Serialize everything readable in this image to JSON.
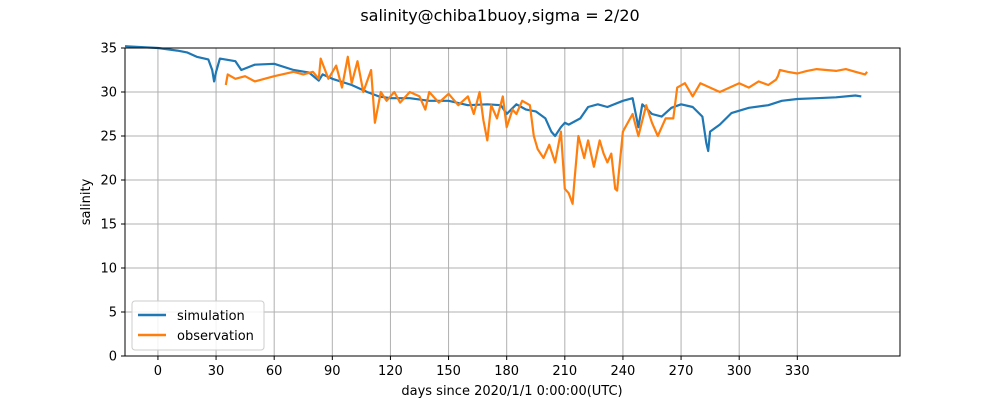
{
  "chart_data": {
    "type": "line",
    "title": "salinity@chiba1buoy,sigma = 2/20",
    "xlabel": "days since 2020/1/1 0:00:00(UTC)",
    "ylabel": "salinity",
    "xlim": [
      -17,
      383
    ],
    "ylim": [
      0,
      35
    ],
    "xticks": [
      0,
      30,
      60,
      90,
      120,
      150,
      180,
      210,
      240,
      270,
      300,
      330
    ],
    "yticks": [
      0,
      5,
      10,
      15,
      20,
      25,
      30,
      35
    ],
    "grid": true,
    "legend_position": "lower-left",
    "series": [
      {
        "name": "simulation",
        "color": "#1f77b4",
        "points": [
          [
            -17,
            35.2
          ],
          [
            0,
            35.0
          ],
          [
            10,
            34.7
          ],
          [
            15,
            34.5
          ],
          [
            20,
            34.0
          ],
          [
            26,
            33.7
          ],
          [
            28,
            32.5
          ],
          [
            29,
            31.2
          ],
          [
            30,
            32.3
          ],
          [
            32,
            33.8
          ],
          [
            40,
            33.5
          ],
          [
            43,
            32.5
          ],
          [
            50,
            33.1
          ],
          [
            60,
            33.2
          ],
          [
            70,
            32.5
          ],
          [
            78,
            32.2
          ],
          [
            83,
            31.3
          ],
          [
            85,
            32.0
          ],
          [
            90,
            31.5
          ],
          [
            100,
            30.8
          ],
          [
            108,
            30.0
          ],
          [
            114,
            29.5
          ],
          [
            120,
            29.3
          ],
          [
            130,
            29.3
          ],
          [
            140,
            29.0
          ],
          [
            150,
            29.0
          ],
          [
            160,
            28.5
          ],
          [
            170,
            28.6
          ],
          [
            177,
            28.5
          ],
          [
            180,
            27.5
          ],
          [
            185,
            28.6
          ],
          [
            190,
            28.0
          ],
          [
            195,
            27.8
          ],
          [
            200,
            27.0
          ],
          [
            203,
            25.5
          ],
          [
            205,
            25.0
          ],
          [
            208,
            26.0
          ],
          [
            210,
            26.5
          ],
          [
            212,
            26.3
          ],
          [
            218,
            27.0
          ],
          [
            222,
            28.3
          ],
          [
            227,
            28.6
          ],
          [
            232,
            28.3
          ],
          [
            240,
            29.0
          ],
          [
            245,
            29.3
          ],
          [
            248,
            26.0
          ],
          [
            250,
            28.6
          ],
          [
            255,
            27.5
          ],
          [
            260,
            27.2
          ],
          [
            265,
            28.2
          ],
          [
            270,
            28.6
          ],
          [
            276,
            28.3
          ],
          [
            281,
            27.2
          ],
          [
            283,
            24.2
          ],
          [
            284,
            23.3
          ],
          [
            285,
            25.5
          ],
          [
            290,
            26.3
          ],
          [
            296,
            27.6
          ],
          [
            305,
            28.2
          ],
          [
            315,
            28.5
          ],
          [
            322,
            29.0
          ],
          [
            330,
            29.2
          ],
          [
            340,
            29.3
          ],
          [
            350,
            29.4
          ],
          [
            360,
            29.6
          ],
          [
            363,
            29.5
          ]
        ]
      },
      {
        "name": "observation",
        "color": "#ff7f0e",
        "points": [
          [
            35,
            30.8
          ],
          [
            36,
            32.0
          ],
          [
            40,
            31.5
          ],
          [
            45,
            31.8
          ],
          [
            50,
            31.2
          ],
          [
            60,
            31.8
          ],
          [
            70,
            32.3
          ],
          [
            75,
            32.0
          ],
          [
            80,
            32.3
          ],
          [
            83,
            31.5
          ],
          [
            84,
            33.8
          ],
          [
            88,
            31.5
          ],
          [
            92,
            33.0
          ],
          [
            95,
            30.5
          ],
          [
            98,
            34.0
          ],
          [
            100,
            31.0
          ],
          [
            103,
            33.5
          ],
          [
            106,
            30.0
          ],
          [
            110,
            32.5
          ],
          [
            112,
            26.5
          ],
          [
            115,
            30.0
          ],
          [
            118,
            29.0
          ],
          [
            122,
            30.0
          ],
          [
            125,
            28.8
          ],
          [
            130,
            30.0
          ],
          [
            135,
            29.5
          ],
          [
            138,
            28.0
          ],
          [
            140,
            30.0
          ],
          [
            145,
            28.8
          ],
          [
            150,
            29.8
          ],
          [
            155,
            28.5
          ],
          [
            160,
            29.5
          ],
          [
            163,
            27.5
          ],
          [
            166,
            30.0
          ],
          [
            168,
            26.8
          ],
          [
            170,
            24.5
          ],
          [
            172,
            28.5
          ],
          [
            175,
            27.0
          ],
          [
            178,
            29.5
          ],
          [
            180,
            26.0
          ],
          [
            183,
            28.0
          ],
          [
            185,
            27.5
          ],
          [
            188,
            29.0
          ],
          [
            192,
            28.5
          ],
          [
            194,
            25.0
          ],
          [
            196,
            23.5
          ],
          [
            199,
            22.5
          ],
          [
            202,
            24.0
          ],
          [
            205,
            22.0
          ],
          [
            208,
            25.5
          ],
          [
            210,
            19.0
          ],
          [
            212,
            18.5
          ],
          [
            214,
            17.3
          ],
          [
            215,
            20.0
          ],
          [
            217,
            25.0
          ],
          [
            220,
            22.5
          ],
          [
            222,
            24.5
          ],
          [
            225,
            21.5
          ],
          [
            228,
            24.5
          ],
          [
            230,
            23.0
          ],
          [
            232,
            22.0
          ],
          [
            234,
            23.0
          ],
          [
            236,
            19.0
          ],
          [
            237,
            18.8
          ],
          [
            240,
            25.5
          ],
          [
            245,
            27.5
          ],
          [
            248,
            25.0
          ],
          [
            252,
            28.5
          ],
          [
            255,
            26.5
          ],
          [
            258,
            25.0
          ],
          [
            262,
            27.0
          ],
          [
            266,
            27.0
          ],
          [
            268,
            30.5
          ],
          [
            272,
            31.0
          ],
          [
            276,
            29.5
          ],
          [
            280,
            31.0
          ],
          [
            285,
            30.5
          ],
          [
            290,
            30.0
          ],
          [
            295,
            30.5
          ],
          [
            300,
            31.0
          ],
          [
            305,
            30.5
          ],
          [
            310,
            31.2
          ],
          [
            315,
            30.8
          ],
          [
            319,
            31.4
          ],
          [
            320,
            31.8
          ],
          [
            321,
            32.5
          ],
          [
            325,
            32.3
          ],
          [
            330,
            32.1
          ],
          [
            335,
            32.4
          ],
          [
            340,
            32.6
          ],
          [
            345,
            32.5
          ],
          [
            350,
            32.4
          ],
          [
            355,
            32.6
          ],
          [
            360,
            32.3
          ],
          [
            365,
            32.0
          ],
          [
            366,
            32.3
          ]
        ]
      }
    ]
  }
}
